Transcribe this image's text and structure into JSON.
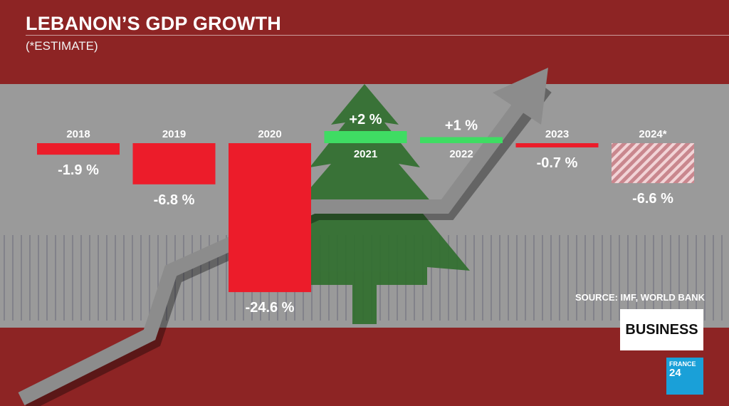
{
  "title": "LEBANON’S GDP GROWTH",
  "subtitle": "(*ESTIMATE)",
  "source": "SOURCE: IMF, WORLD BANK",
  "badge": "BUSINESS",
  "channel_logo": {
    "brand": "FRANCE",
    "number": "24"
  },
  "colors": {
    "negative": "#ec1c2a",
    "positive": "#3fdc63",
    "estimate_hatch": "#e8a7ae",
    "flag_red": "#8d2424",
    "flag_white": "#9a9a9a",
    "cedar": "#2f6e2c"
  },
  "chart_data": {
    "type": "bar",
    "title": "LEBANON’S GDP GROWTH",
    "subtitle": "(*ESTIMATE)",
    "categories": [
      "2018",
      "2019",
      "2020",
      "2021",
      "2022",
      "2023",
      "2024*"
    ],
    "values": [
      -1.9,
      -6.8,
      -24.6,
      2,
      1,
      -0.7,
      -6.6
    ],
    "value_labels": [
      "-1.9 %",
      "-6.8 %",
      "-24.6 %",
      "+2 %",
      "+1 %",
      "-0.7 %",
      "-6.6 %"
    ],
    "estimate": [
      false,
      false,
      false,
      false,
      false,
      false,
      true
    ],
    "units": "%",
    "grid": false,
    "legend": "none"
  }
}
